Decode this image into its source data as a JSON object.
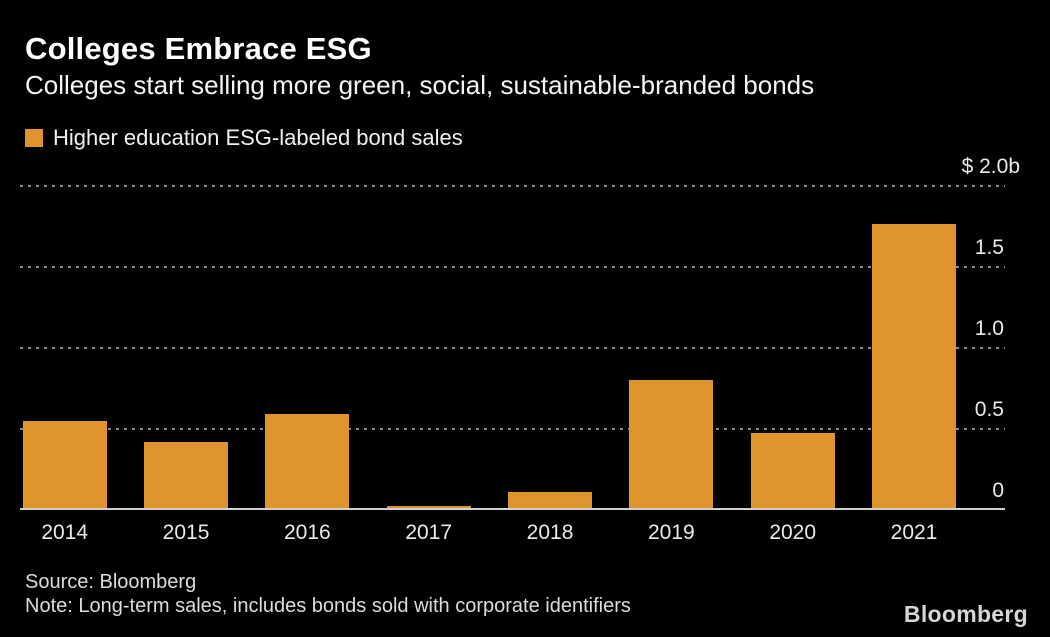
{
  "header": {
    "title": "Colleges Embrace ESG",
    "subtitle": "Colleges start selling more green, social, sustainable-branded bonds"
  },
  "legend": {
    "label": "Higher education ESG-labeled bond sales",
    "swatch_color": "#E0942D"
  },
  "chart_data": {
    "type": "bar",
    "title": "Colleges Embrace ESG",
    "series_name": "Higher education ESG-labeled bond sales",
    "categories": [
      "2014",
      "2015",
      "2016",
      "2017",
      "2018",
      "2019",
      "2020",
      "2021"
    ],
    "values": [
      0.54,
      0.41,
      0.58,
      0.01,
      0.1,
      0.79,
      0.46,
      1.75
    ],
    "unit": "$b",
    "ylim": [
      0,
      2.0
    ],
    "y_ticks": [
      {
        "value": 2.0,
        "label": "$ 2.0b"
      },
      {
        "value": 1.5,
        "label": "1.5"
      },
      {
        "value": 1.0,
        "label": "1.0"
      },
      {
        "value": 0.5,
        "label": "0.5"
      },
      {
        "value": 0,
        "label": "0"
      }
    ],
    "bar_color": "#E0942D",
    "grid": "dotted horizontal, legend top-left, y-axis labels on right"
  },
  "footer": {
    "source": "Source: Bloomberg",
    "note": "Note: Long-term sales, includes bonds sold with corporate identifiers",
    "logo": "Bloomberg"
  },
  "colors": {
    "background": "#000000",
    "title_text": "#ffffff",
    "accent_orange": "#E0942D",
    "gridline": "#8c8c8c",
    "baseline": "#cfcfcf",
    "tick_text": "#eaeaea",
    "footer_text": "#dcdcdc"
  }
}
